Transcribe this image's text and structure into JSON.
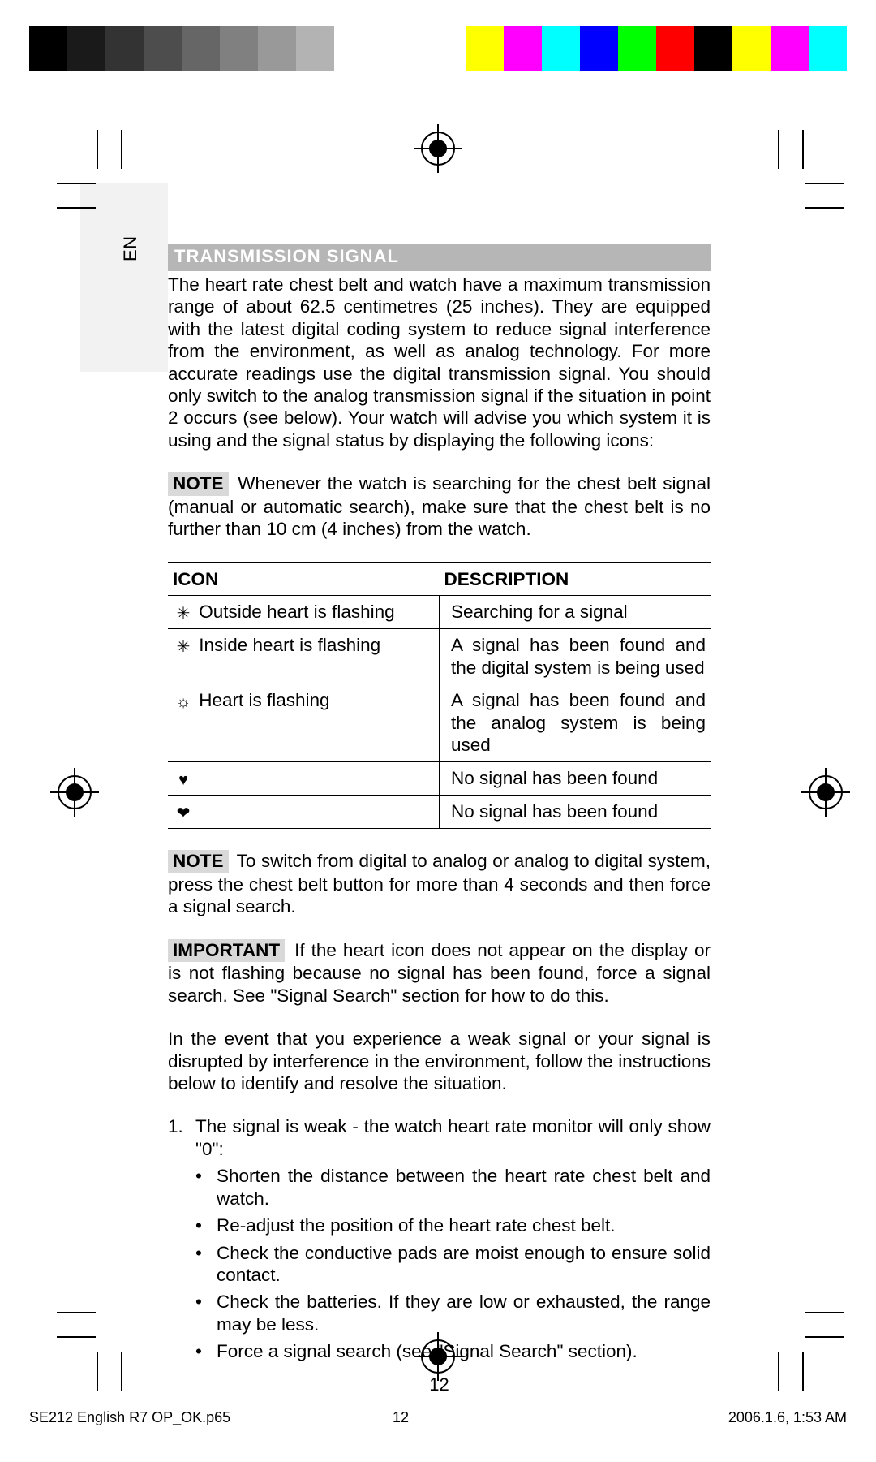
{
  "colorbars": {
    "left": [
      "#000000",
      "#1a1a1a",
      "#333333",
      "#4d4d4d",
      "#666666",
      "#808080",
      "#999999",
      "#b3b3b3",
      "#ffffff"
    ],
    "right": [
      "#ffff00",
      "#ff00ff",
      "#00ffff",
      "#0000ff",
      "#00ff00",
      "#ff0000",
      "#000000",
      "#ffff00",
      "#ff00ff",
      "#00ffff"
    ]
  },
  "lang_label": "EN",
  "section_title": "TRANSMISSION SIGNAL",
  "para1": "The heart rate chest belt and watch have a maximum transmission range of about 62.5 centimetres (25 inches). They are equipped with the latest digital coding system to reduce signal interference from the environment, as well as analog technology. For more accurate readings use the digital transmission signal. You should only switch to the analog transmission signal if the situation in point 2 occurs (see below). Your watch will advise you which system it is using and the signal status by displaying the following icons:",
  "note1_label": "NOTE",
  "note1_text": "Whenever the watch is searching for the chest belt signal (manual or automatic search), make sure that the chest belt is no further than 10 cm (4 inches) from the watch.",
  "table": {
    "head_icon": "ICON",
    "head_desc": "DESCRIPTION",
    "rows": [
      {
        "sym": "✳",
        "icon": "Outside heart is flashing",
        "desc": "Searching for a signal"
      },
      {
        "sym": "✳",
        "icon": "Inside heart is flashing",
        "desc": "A signal has been found and the digital system is being used"
      },
      {
        "sym": "☼",
        "icon": "Heart is flashing",
        "desc": "A signal has been found and the analog system is being used"
      },
      {
        "sym": "♥",
        "icon": "",
        "desc": "No signal has been found"
      },
      {
        "sym": "❤",
        "icon": "",
        "desc": "No signal has been found"
      }
    ]
  },
  "note2_label": "NOTE",
  "note2_text": "To switch from digital to analog or analog to digital system, press the chest belt button for more than 4 seconds and then force a signal search.",
  "important_label": "IMPORTANT",
  "important_text": "If the heart icon does not appear on the display or is not flashing because no signal has been found, force a signal search. See \"Signal Search\" section for how to do this.",
  "para2": "In the event that you experience a weak signal or your signal is disrupted by interference in the environment, follow the instructions below to identify and resolve the situation.",
  "list1_num": "1.",
  "list1_text": "The signal is weak - the watch heart rate monitor will only show \"0\":",
  "bullets": [
    "Shorten the distance between the heart rate chest belt and watch.",
    "Re-adjust the position of the heart rate chest belt.",
    "Check the conductive pads are moist enough to ensure solid contact.",
    "Check the batteries. If they are low or exhausted, the range may be less.",
    "Force a signal search (see \"Signal Search\" section)."
  ],
  "page_number": "12",
  "footer": {
    "left": "SE212 English R7 OP_OK.p65",
    "mid": "12",
    "right": "2006.1.6, 1:53 AM"
  }
}
